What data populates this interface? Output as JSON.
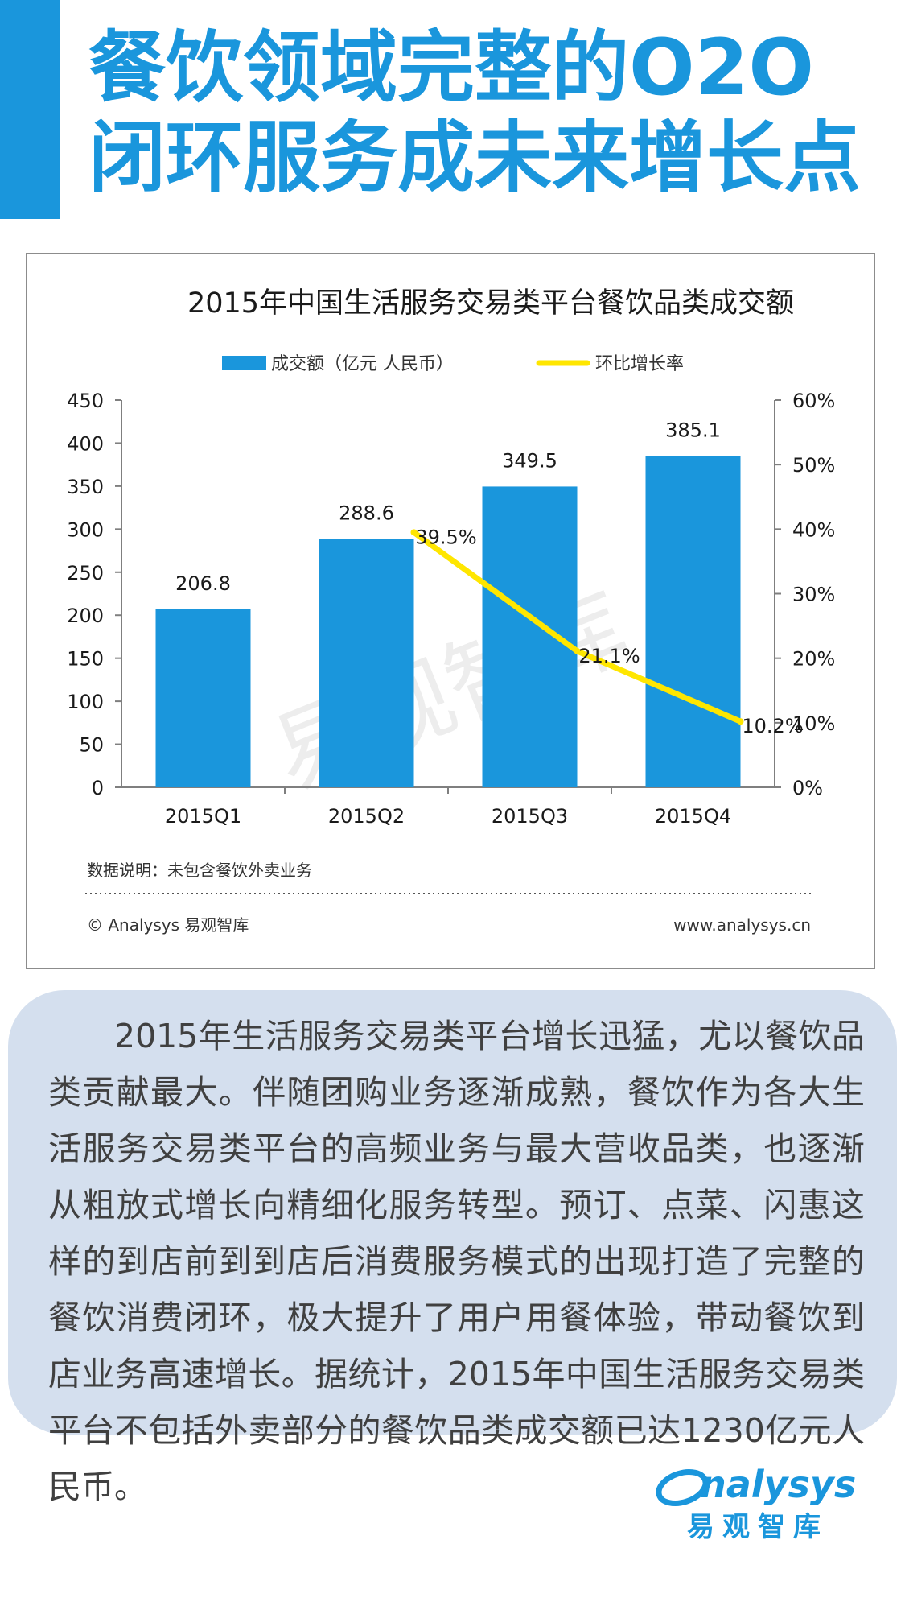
{
  "header": {
    "title_line1": "餐饮领域完整的O2O",
    "title_line2": "闭环服务成未来增长点"
  },
  "chart_data": {
    "type": "bar",
    "title": "2015年中国生活服务交易类平台餐饮品类成交额",
    "categories": [
      "2015Q1",
      "2015Q2",
      "2015Q3",
      "2015Q4"
    ],
    "series": [
      {
        "name": "成交额（亿元 人民币）",
        "type": "bar",
        "axis": "left",
        "color": "#1a96dc",
        "values": [
          206.8,
          288.6,
          349.5,
          385.1
        ],
        "labels": [
          "206.8",
          "288.6",
          "349.5",
          "385.1"
        ]
      },
      {
        "name": "环比增长率",
        "type": "line",
        "axis": "right",
        "color": "#ffe600",
        "values": [
          null,
          39.5,
          21.1,
          10.2
        ],
        "labels": [
          "",
          "39.5%",
          "21.1%",
          "10.2%"
        ]
      }
    ],
    "y_left": {
      "min": 0,
      "max": 450,
      "ticks": [
        "0",
        "50",
        "100",
        "150",
        "200",
        "250",
        "300",
        "350",
        "400",
        "450"
      ]
    },
    "y_right": {
      "min": 0,
      "max": 60,
      "ticks": [
        "0%",
        "10%",
        "20%",
        "30%",
        "40%",
        "50%",
        "60%"
      ]
    },
    "legend_position": "top",
    "grid": false,
    "note": "数据说明：未包含餐饮外卖业务",
    "source": "© Analysys 易观智库",
    "url": "www.analysys.cn",
    "watermark": "易观智库"
  },
  "summary": {
    "text": "2015年生活服务交易类平台增长迅猛，尤以餐饮品类贡献最大。伴随团购业务逐渐成熟，餐饮作为各大生活服务交易类平台的高频业务与最大营收品类，也逐渐从粗放式增长向精细化服务转型。预订、点菜、闪惠这样的到店前到到店后消费服务模式的出现打造了完整的餐饮消费闭环，极大提升了用户用餐体验，带动餐饮到店业务高速增长。据统计，2015年中国生活服务交易类平台不包括外卖部分的餐饮品类成交额已达1230亿元人民币。"
  },
  "logo": {
    "wordmark": "nalysys",
    "subtitle": "易观智库",
    "color": "#1a96dc"
  }
}
